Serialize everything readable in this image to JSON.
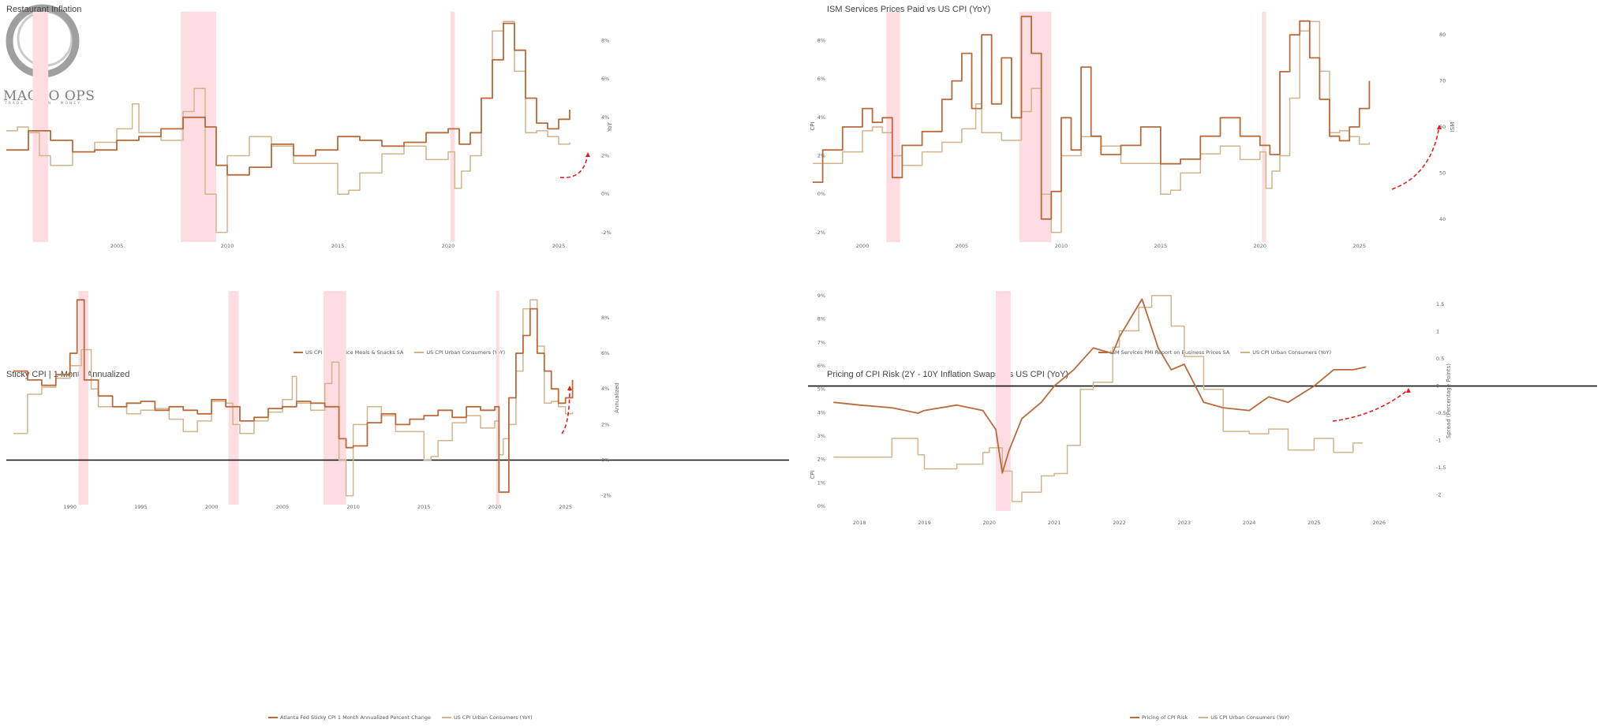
{
  "logo": {
    "text": "MACRO OPS",
    "sub": "TRADE · LEARN · MONEY"
  },
  "colors": {
    "series1": "#b86a3b",
    "series2": "#d2b48c",
    "shade": "#fddde1",
    "arrow": "#e02020"
  },
  "charts": [
    {
      "title": "Restaurant Inflation",
      "legend": [
        "US CPI Full Service Meals & Snacks SA",
        "US CPI Urban Consumers (YoY)"
      ],
      "xticks": [
        "2005",
        "2010",
        "2015",
        "2020",
        "2025"
      ],
      "yticks_right": [
        "8%",
        "6%",
        "4%",
        "2%",
        "0%",
        "-2%"
      ],
      "ylabel_right": "YoY"
    },
    {
      "title": "ISM Services Prices Paid vs US CPI (YoY)",
      "legend": [
        "ISM Services PMI Report on Business Prices SA",
        "US CPI Urban Consumers (YoY)"
      ],
      "xticks": [
        "2000",
        "2005",
        "2010",
        "2015",
        "2020",
        "2025"
      ],
      "yticks_left": [
        "8%",
        "6%",
        "4%",
        "2%",
        "0%",
        "-2%"
      ],
      "ylabel_left": "CPI",
      "yticks_right": [
        "80",
        "70",
        "60",
        "50",
        "40"
      ],
      "ylabel_right": "ISM"
    },
    {
      "title": "Sticky CPI | 1 Month Annualized",
      "legend": [
        "Atlanta Fed Sticky CPI 1 Month Annualized Percent Change",
        "US CPI Urban Consumers (YoY)"
      ],
      "xticks": [
        "1990",
        "1995",
        "2000",
        "2005",
        "2010",
        "2015",
        "2020",
        "2025"
      ],
      "yticks_right": [
        "8%",
        "6%",
        "4%",
        "2%",
        "0%",
        "-2%"
      ],
      "ylabel_right": "Annualized"
    },
    {
      "title": "Pricing of CPI Risk (2Y - 10Y Inflation Swaps) vs US CPI (YoY)",
      "legend": [
        "Pricing of CPI Risk",
        "US CPI Urban Consumers (YoY)"
      ],
      "xticks": [
        "2018",
        "2019",
        "2020",
        "2021",
        "2022",
        "2023",
        "2024",
        "2025",
        "2026"
      ],
      "yticks_left": [
        "9%",
        "8%",
        "7%",
        "6%",
        "5%",
        "4%",
        "3%",
        "2%",
        "1%",
        "0%"
      ],
      "ylabel_left": "CPI",
      "yticks_right": [
        "1.5",
        "1",
        "0.5",
        "0",
        "-0.5",
        "-1",
        "-1.5",
        "-2"
      ],
      "ylabel_right": "Spread (Percentage Points)"
    }
  ],
  "chart_data": [
    {
      "type": "line",
      "title": "Restaurant Inflation",
      "y_unit": "YoY %",
      "ylim": [
        -2.5,
        9.5
      ],
      "recessions": [
        [
          2001.2,
          2001.9
        ],
        [
          2007.9,
          2009.5
        ],
        [
          2020.1,
          2020.3
        ]
      ],
      "series": [
        {
          "name": "US CPI Full Service Meals & Snacks SA",
          "x": [
            2000,
            2001,
            2002,
            2003,
            2004,
            2005,
            2006,
            2007,
            2008,
            2009,
            2009.5,
            2010,
            2011,
            2012,
            2013,
            2014,
            2015,
            2016,
            2017,
            2018,
            2019,
            2020,
            2020.5,
            2021,
            2021.5,
            2022,
            2022.5,
            2023,
            2023.5,
            2024,
            2024.5,
            2025,
            2025.5
          ],
          "values": [
            2.3,
            3.3,
            2.8,
            2.2,
            2.3,
            2.8,
            3.0,
            3.4,
            4.0,
            3.5,
            1.5,
            1.0,
            1.4,
            2.6,
            2.0,
            2.3,
            3.0,
            2.8,
            2.5,
            2.7,
            3.2,
            3.4,
            2.6,
            3.2,
            5.0,
            7.0,
            8.9,
            7.5,
            5.0,
            3.7,
            3.4,
            3.9,
            4.4
          ]
        },
        {
          "name": "US CPI Urban Consumers (YoY)",
          "x": [
            2000,
            2000.5,
            2001,
            2001.5,
            2002,
            2003,
            2004,
            2005,
            2005.7,
            2006,
            2007,
            2008,
            2008.5,
            2009,
            2009.5,
            2010,
            2011,
            2012,
            2013,
            2014,
            2015,
            2015.5,
            2016,
            2017,
            2018,
            2019,
            2020,
            2020.3,
            2020.6,
            2021,
            2021.5,
            2022,
            2022.5,
            2023,
            2023.5,
            2024,
            2024.5,
            2025,
            2025.5
          ],
          "values": [
            3.3,
            3.5,
            3.2,
            2.0,
            1.5,
            2.2,
            2.7,
            3.4,
            4.7,
            3.2,
            2.8,
            4.3,
            5.5,
            0.0,
            -2.0,
            2.0,
            3.0,
            2.5,
            1.6,
            1.6,
            0.0,
            0.2,
            1.1,
            2.1,
            2.5,
            1.8,
            2.2,
            0.3,
            1.2,
            2.0,
            5.0,
            8.5,
            9.0,
            6.4,
            3.2,
            3.3,
            3.0,
            2.6,
            2.7
          ]
        }
      ]
    },
    {
      "type": "line",
      "title": "ISM Services Prices Paid vs US CPI (YoY)",
      "ylim": [
        -2.5,
        9.5
      ],
      "recessions": [
        [
          2001.2,
          2001.9
        ],
        [
          2007.9,
          2009.5
        ],
        [
          2020.1,
          2020.3
        ]
      ],
      "series": [
        {
          "name": "ISM Services PMI Report on Business Prices SA",
          "axis": "right",
          "x": [
            1997.5,
            1998,
            1999,
            2000,
            2000.5,
            2001,
            2001.5,
            2002,
            2003,
            2004,
            2004.5,
            2005,
            2005.5,
            2006,
            2006.5,
            2007,
            2007.5,
            2008,
            2008.5,
            2009,
            2009.5,
            2010,
            2010.5,
            2011,
            2011.5,
            2012,
            2013,
            2014,
            2015,
            2016,
            2017,
            2018,
            2019,
            2020,
            2020.5,
            2021,
            2021.5,
            2022,
            2022.5,
            2023,
            2023.5,
            2024,
            2024.5,
            2025,
            2025.5
          ],
          "values": [
            48,
            55,
            60,
            64,
            61,
            62,
            49,
            56,
            59,
            66,
            70,
            76,
            64,
            80,
            65,
            75,
            62,
            84,
            76,
            40,
            46,
            62,
            55,
            73,
            58,
            54,
            56,
            60,
            52,
            53,
            58,
            62,
            58,
            56,
            54,
            72,
            80,
            83,
            75,
            66,
            58,
            57,
            60,
            64,
            70
          ]
        },
        {
          "name": "US CPI Urban Consumers (YoY)",
          "axis": "left",
          "x": [
            1997.5,
            1998,
            1999,
            2000,
            2000.5,
            2001,
            2001.5,
            2002,
            2003,
            2004,
            2005,
            2005.7,
            2006,
            2007,
            2008,
            2008.5,
            2009,
            2009.5,
            2010,
            2011,
            2012,
            2013,
            2014,
            2015,
            2015.5,
            2016,
            2017,
            2018,
            2019,
            2020,
            2020.3,
            2020.6,
            2021,
            2021.5,
            2022,
            2022.5,
            2023,
            2023.5,
            2024,
            2024.5,
            2025,
            2025.5
          ],
          "values": [
            1.6,
            1.6,
            2.2,
            3.3,
            3.5,
            3.2,
            2.0,
            1.5,
            2.2,
            2.7,
            3.4,
            4.7,
            3.2,
            2.8,
            4.3,
            5.5,
            0.0,
            -2.0,
            2.0,
            3.0,
            2.5,
            1.6,
            1.6,
            0.0,
            0.2,
            1.1,
            2.1,
            2.5,
            1.8,
            2.2,
            0.3,
            1.2,
            2.0,
            5.0,
            8.5,
            9.0,
            6.4,
            3.2,
            3.3,
            3.0,
            2.6,
            2.7
          ]
        }
      ]
    },
    {
      "type": "line",
      "title": "Sticky CPI | 1 Month Annualized",
      "ylim": [
        -2.5,
        9.5
      ],
      "recessions": [
        [
          1990.6,
          1991.3
        ],
        [
          2001.2,
          2001.9
        ],
        [
          2007.9,
          2009.5
        ],
        [
          2020.1,
          2020.3
        ]
      ],
      "series": [
        {
          "name": "Atlanta Fed Sticky CPI 1 Month Annualized Percent Change",
          "x": [
            1986,
            1987,
            1988,
            1989,
            1990,
            1990.5,
            1991,
            1992,
            1993,
            1994,
            1995,
            1996,
            1997,
            1998,
            1999,
            2000,
            2001,
            2002,
            2003,
            2004,
            2005,
            2006,
            2007,
            2008,
            2009,
            2009.5,
            2010,
            2011,
            2012,
            2013,
            2014,
            2015,
            2016,
            2017,
            2018,
            2019,
            2020,
            2020.3,
            2021,
            2021.5,
            2022,
            2022.5,
            2023,
            2023.5,
            2024,
            2024.5,
            2025,
            2025.5
          ],
          "values": [
            5.0,
            4.5,
            4.2,
            4.8,
            6.0,
            9.0,
            4.5,
            3.6,
            3.0,
            3.2,
            3.3,
            2.8,
            3.0,
            2.8,
            2.6,
            3.4,
            3.0,
            2.2,
            2.4,
            2.9,
            3.0,
            3.3,
            3.2,
            3.0,
            1.2,
            0.7,
            0.8,
            2.1,
            2.6,
            2.0,
            2.3,
            2.5,
            2.8,
            2.4,
            3.0,
            2.8,
            3.0,
            -1.8,
            3.5,
            6.0,
            7.0,
            8.5,
            6.0,
            5.0,
            4.0,
            3.2,
            3.5,
            4.5
          ]
        },
        {
          "name": "US CPI Urban Consumers (YoY)",
          "x": [
            1986,
            1987,
            1988,
            1989,
            1990,
            1990.8,
            1991.5,
            1992,
            1993,
            1994,
            1995,
            1996,
            1997,
            1998,
            1999,
            2000,
            2001,
            2001.5,
            2002,
            2003,
            2004,
            2005,
            2005.7,
            2006,
            2007,
            2008,
            2008.5,
            2009,
            2009.5,
            2010,
            2011,
            2012,
            2013,
            2014,
            2015,
            2015.5,
            2016,
            2017,
            2018,
            2019,
            2020,
            2020.3,
            2020.6,
            2021,
            2021.5,
            2022,
            2022.5,
            2023,
            2023.5,
            2024,
            2024.5,
            2025,
            2025.5
          ],
          "values": [
            1.5,
            3.7,
            4.1,
            4.6,
            5.3,
            6.2,
            4.0,
            3.0,
            3.0,
            2.6,
            2.8,
            2.9,
            2.3,
            1.6,
            2.2,
            3.3,
            3.2,
            2.0,
            1.5,
            2.2,
            2.7,
            3.4,
            4.7,
            3.2,
            2.8,
            4.3,
            5.5,
            0.0,
            -2.0,
            2.0,
            3.0,
            2.5,
            1.6,
            1.6,
            0.0,
            0.2,
            1.1,
            2.1,
            2.5,
            1.8,
            2.2,
            0.3,
            1.2,
            2.0,
            5.0,
            8.5,
            9.0,
            6.4,
            3.2,
            3.3,
            3.0,
            2.6,
            2.7
          ]
        }
      ]
    },
    {
      "type": "line",
      "title": "Pricing of CPI Risk (2Y - 10Y Inflation Swaps) vs US CPI (YoY)",
      "recessions": [
        [
          2020.1,
          2020.33
        ]
      ],
      "hline": {
        "axis": "right",
        "value": 0
      },
      "series": [
        {
          "name": "Pricing of CPI Risk",
          "axis": "right",
          "ylim": [
            -2.3,
            1.75
          ],
          "x": [
            2017.6,
            2018,
            2018.5,
            2018.9,
            2019,
            2019.5,
            2019.9,
            2020.1,
            2020.2,
            2020.3,
            2020.5,
            2020.8,
            2021,
            2021.3,
            2021.6,
            2021.9,
            2022,
            2022.2,
            2022.35,
            2022.6,
            2022.8,
            2023,
            2023.3,
            2023.6,
            2024,
            2024.3,
            2024.6,
            2025,
            2025.3,
            2025.6,
            2025.8
          ],
          "values": [
            -0.3,
            -0.35,
            -0.4,
            -0.5,
            -0.45,
            -0.35,
            -0.45,
            -0.8,
            -1.6,
            -1.2,
            -0.6,
            -0.3,
            0.0,
            0.3,
            0.7,
            0.6,
            0.9,
            1.3,
            1.6,
            0.7,
            0.3,
            0.4,
            -0.3,
            -0.4,
            -0.45,
            -0.2,
            -0.3,
            0.0,
            0.3,
            0.3,
            0.35
          ]
        },
        {
          "name": "US CPI Urban Consumers (YoY)",
          "axis": "left",
          "ylim": [
            -0.2,
            9.2
          ],
          "x": [
            2017.6,
            2018,
            2018.5,
            2018.9,
            2019,
            2019.5,
            2019.9,
            2020,
            2020.2,
            2020.35,
            2020.5,
            2020.8,
            2021,
            2021.2,
            2021.4,
            2021.6,
            2021.9,
            2022,
            2022.3,
            2022.5,
            2022.8,
            2023,
            2023.3,
            2023.6,
            2024,
            2024.3,
            2024.6,
            2025,
            2025.3,
            2025.6,
            2025.75
          ],
          "values": [
            2.1,
            2.1,
            2.9,
            2.2,
            1.6,
            1.8,
            2.3,
            2.5,
            1.5,
            0.2,
            0.6,
            1.3,
            1.4,
            2.6,
            5.0,
            5.3,
            6.8,
            7.5,
            8.5,
            9.0,
            7.7,
            6.4,
            5.0,
            3.2,
            3.1,
            3.3,
            2.4,
            2.9,
            2.3,
            2.7,
            2.7
          ]
        }
      ]
    }
  ]
}
